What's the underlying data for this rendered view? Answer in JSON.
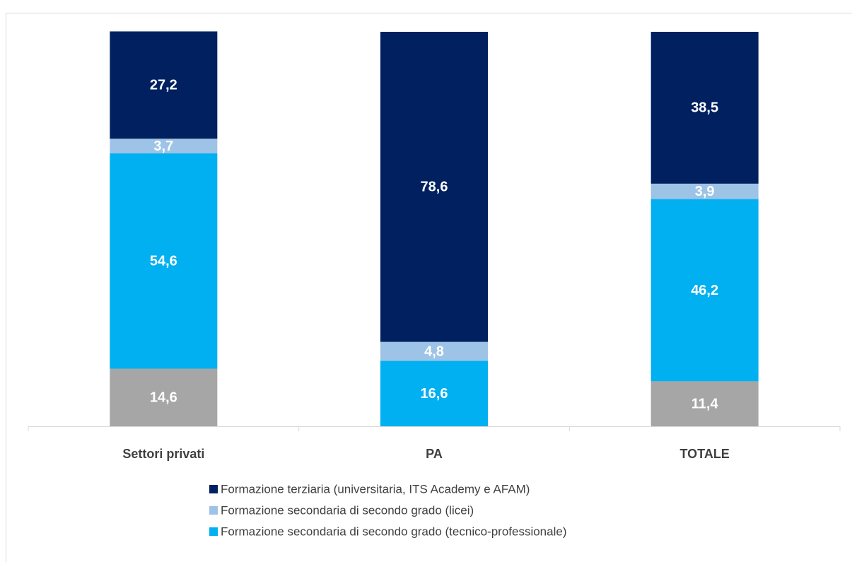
{
  "chart_data": {
    "type": "stacked_bar",
    "categories": [
      "Settori privati",
      "PA",
      "TOTALE"
    ],
    "ylim": [
      0,
      100
    ],
    "series": [
      {
        "color": "#a6a6a6",
        "values": [
          14.6,
          null,
          11.4
        ],
        "value_labels": [
          "14,6",
          null,
          "11,4"
        ]
      },
      {
        "name": "Formazione secondaria di secondo grado (tecnico-professionale)",
        "color": "#00b0f0",
        "values": [
          54.6,
          16.6,
          46.2
        ],
        "value_labels": [
          "54,6",
          "16,6",
          "46,2"
        ]
      },
      {
        "name": "Formazione secondaria di secondo grado (licei)",
        "color": "#9dc3e6",
        "values": [
          3.7,
          4.8,
          3.9
        ],
        "value_labels": [
          "3,7",
          "4,8",
          "3,9"
        ]
      },
      {
        "name": "Formazione terziaria (universitaria, ITS Academy e AFAM)",
        "color": "#002060",
        "values": [
          27.2,
          78.6,
          38.5
        ],
        "value_labels": [
          "27,2",
          "78,6",
          "38,5"
        ]
      }
    ],
    "legend": "bottom"
  }
}
